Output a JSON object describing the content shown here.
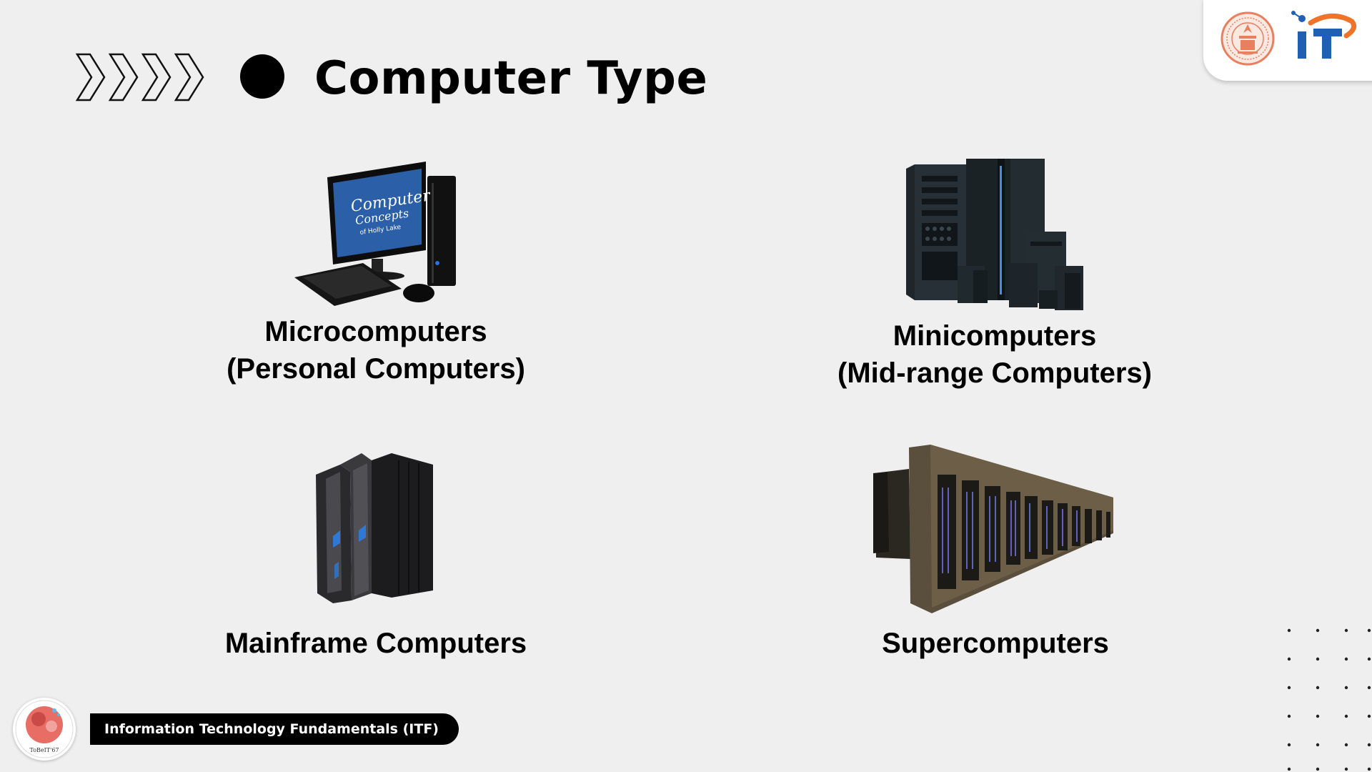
{
  "header": {
    "title": "Computer Type"
  },
  "items": [
    {
      "id": "micro",
      "label_line1": "Microcomputers",
      "label_line2": "(Personal Computers)",
      "image_icon": "desktop-computer-icon",
      "screen_text_1": "Computer",
      "screen_text_2": "Concepts",
      "screen_text_3": "of Holly Lake"
    },
    {
      "id": "mini",
      "label_line1": "Minicomputers",
      "label_line2": "(Mid-range Computers)",
      "image_icon": "server-rack-icon"
    },
    {
      "id": "main",
      "label_line1": "Mainframe Computers",
      "image_icon": "mainframe-icon"
    },
    {
      "id": "super",
      "label_line1": "Supercomputers",
      "image_icon": "supercomputer-icon"
    }
  ],
  "logos": {
    "seal_icon": "university-seal-icon",
    "it_logo_text": "iT",
    "footer_logo_icon": "mascot-logo-icon",
    "footer_logo_text": "ToBeIT'67"
  },
  "footer": {
    "course": "Information Technology Fundamentals (ITF)"
  },
  "colors": {
    "background": "#efefef",
    "it_blue": "#1f5fb4",
    "it_orange": "#f0732a",
    "seal_orange": "#e8805f",
    "screen_blue": "#2b5fa8"
  }
}
